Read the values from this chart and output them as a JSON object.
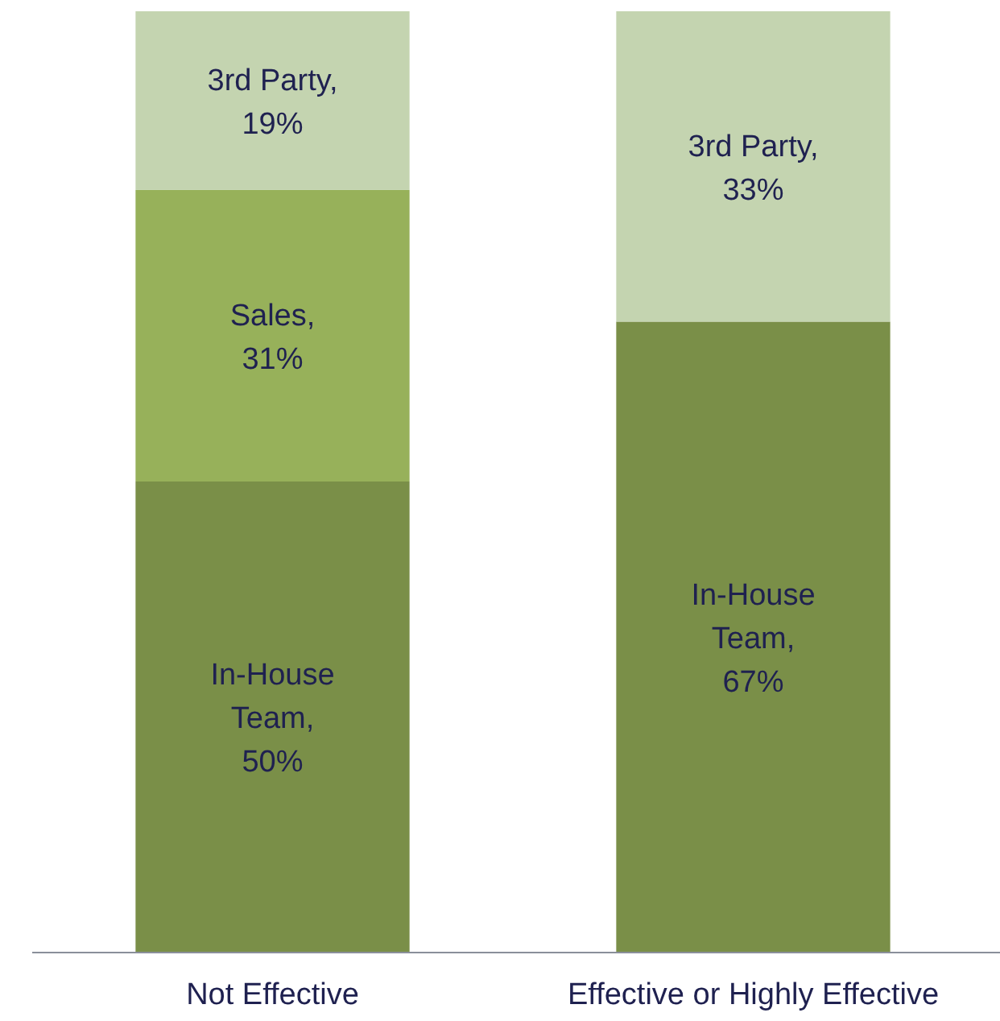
{
  "chart_data": {
    "type": "bar",
    "stacked": true,
    "categories": [
      "Not Effective",
      "Effective or Highly Effective"
    ],
    "ylim": [
      0,
      100
    ],
    "series": [
      {
        "color": "#7a8f48",
        "values": [
          50,
          67
        ],
        "value_labels": [
          "In-House Team, 50%",
          "In-House Team, 67%"
        ]
      },
      {
        "color": "#97b15a",
        "values": [
          31,
          null
        ],
        "value_labels": [
          "Sales, 31%",
          null
        ]
      },
      {
        "color": "#c4d4b0",
        "values": [
          19,
          33
        ],
        "value_labels": [
          "3rd Party, 19%",
          "3rd Party, 33%"
        ]
      }
    ]
  }
}
